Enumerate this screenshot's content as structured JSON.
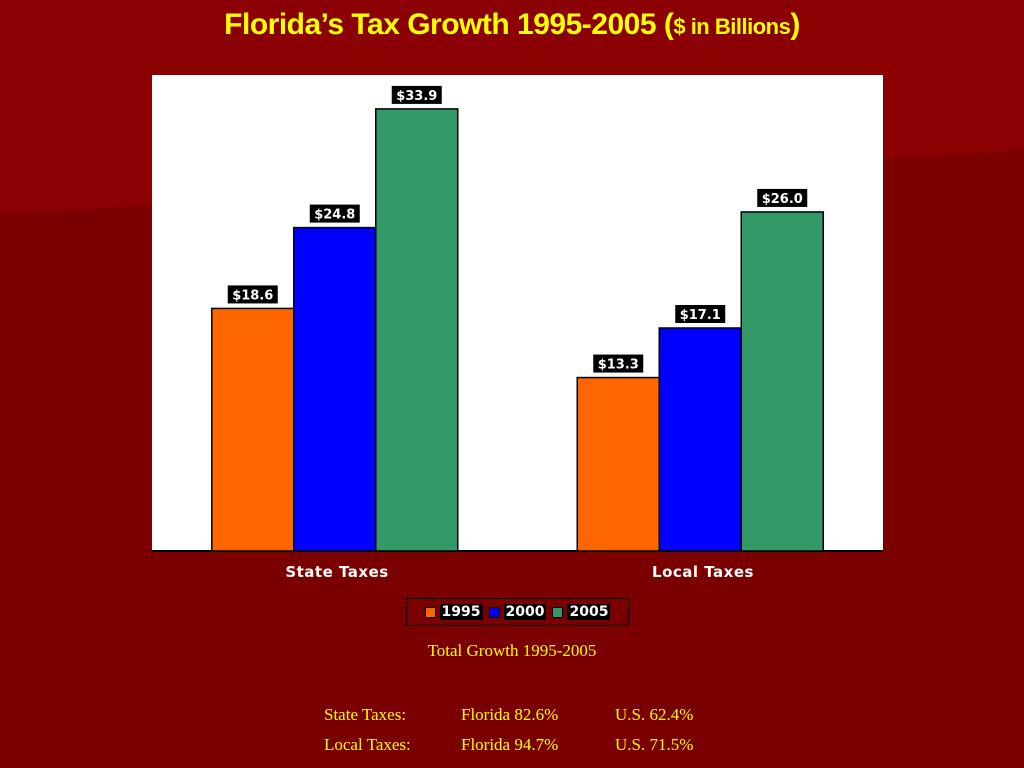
{
  "title": {
    "main": "Florida’s Tax Growth 1995-2005 (",
    "unit": "$ in Billions",
    "close": ")"
  },
  "colors": {
    "background": "#7a0000",
    "title": "#ffff00",
    "series_1995": "#ff6600",
    "series_2000": "#0000ff",
    "series_2005": "#339966"
  },
  "chart_data": {
    "type": "bar",
    "categories": [
      "State Taxes",
      "Local Taxes"
    ],
    "series": [
      {
        "name": "1995",
        "values": [
          18.6,
          13.3
        ],
        "labels": [
          "$18.6",
          "$13.3"
        ],
        "color": "#ff6600"
      },
      {
        "name": "2000",
        "values": [
          24.8,
          17.1
        ],
        "labels": [
          "$24.8",
          "$17.1"
        ],
        "color": "#0000ff"
      },
      {
        "name": "2005",
        "values": [
          33.9,
          26.0
        ],
        "labels": [
          "$33.9",
          "$26.0"
        ],
        "color": "#339966"
      }
    ],
    "ylim": [
      0,
      36.5
    ],
    "grid": false,
    "legend": "bottom"
  },
  "summary": {
    "heading": "Total Growth 1995-2005",
    "rows": [
      {
        "label": "State Taxes:",
        "florida": "Florida  82.6%",
        "us": "U.S. 62.4%"
      },
      {
        "label": "Local Taxes:",
        "florida": "Florida  94.7%",
        "us": "U.S. 71.5%"
      }
    ]
  }
}
